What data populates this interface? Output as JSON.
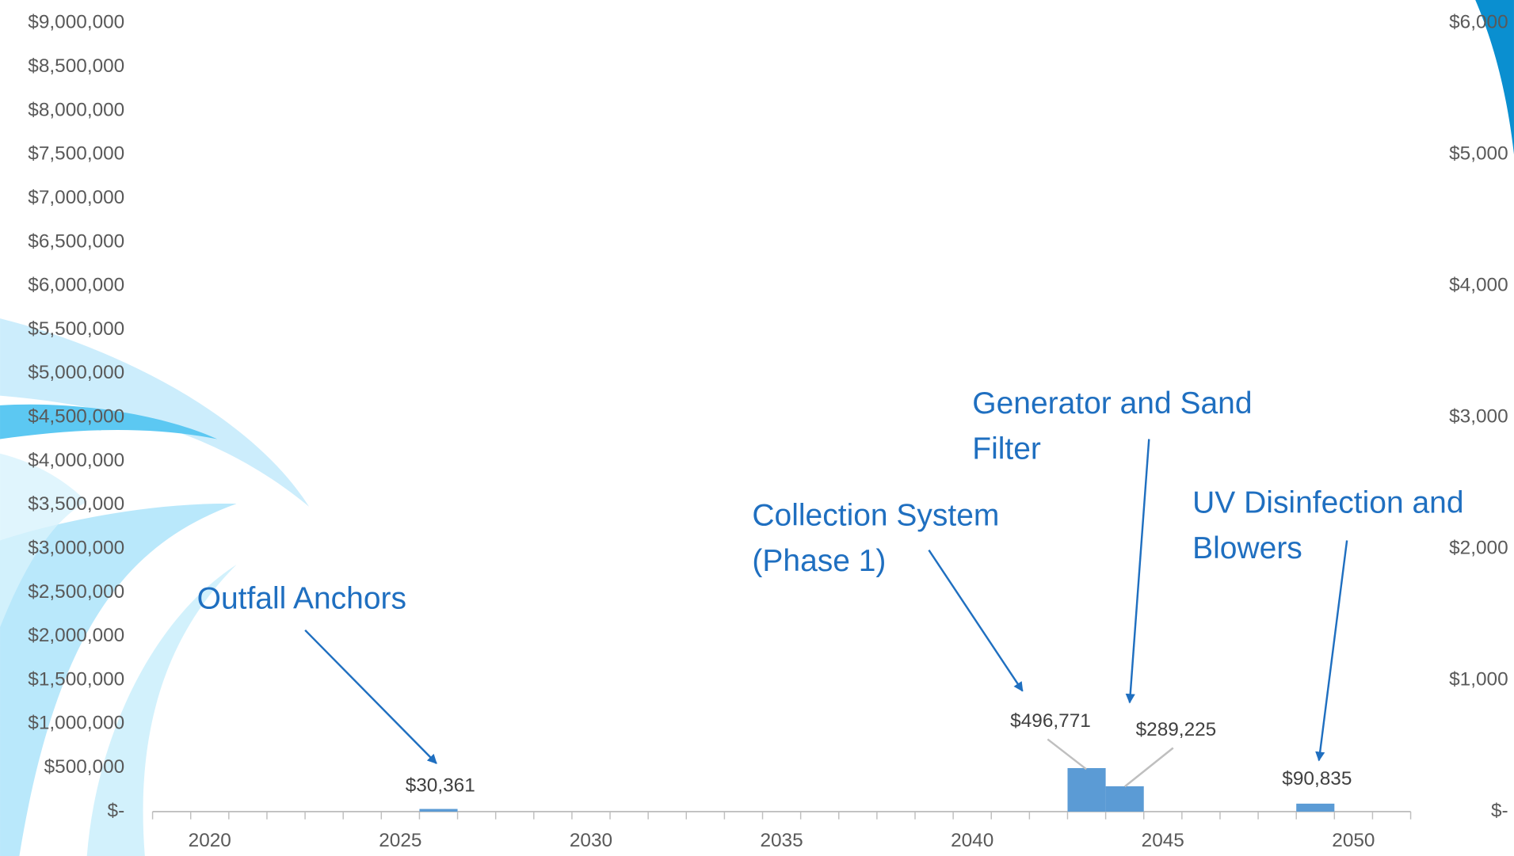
{
  "chart_data": {
    "type": "bar",
    "categories": [
      null,
      "2020",
      null,
      null,
      null,
      null,
      "2025",
      null,
      null,
      null,
      null,
      "2030",
      null,
      null,
      null,
      null,
      "2035",
      null,
      null,
      null,
      null,
      "2040",
      null,
      null,
      null,
      null,
      "2045",
      null,
      null,
      null,
      null,
      "2050",
      null
    ],
    "values": [
      null,
      null,
      null,
      null,
      null,
      null,
      null,
      30361,
      null,
      null,
      null,
      null,
      null,
      null,
      null,
      null,
      null,
      null,
      null,
      null,
      null,
      null,
      null,
      null,
      496771,
      289225,
      null,
      null,
      null,
      null,
      90835,
      null,
      null
    ],
    "value_labels": [
      null,
      null,
      null,
      null,
      null,
      null,
      null,
      "$30,361",
      null,
      null,
      null,
      null,
      null,
      null,
      null,
      null,
      null,
      null,
      null,
      null,
      null,
      null,
      null,
      null,
      "$496,771",
      "$289,225",
      null,
      null,
      null,
      null,
      "$90,835",
      null,
      null
    ],
    "color": "#5b9bd5",
    "ylim": [
      0,
      9000000
    ],
    "yticks": [
      {
        "value": 0,
        "label": "$-"
      },
      {
        "value": 500000,
        "label": "$500,000"
      },
      {
        "value": 1000000,
        "label": "$1,000,000"
      },
      {
        "value": 1500000,
        "label": "$1,500,000"
      },
      {
        "value": 2000000,
        "label": "$2,000,000"
      },
      {
        "value": 2500000,
        "label": "$2,500,000"
      },
      {
        "value": 3000000,
        "label": "$3,000,000"
      },
      {
        "value": 3500000,
        "label": "$3,500,000"
      },
      {
        "value": 4000000,
        "label": "$4,000,000"
      },
      {
        "value": 4500000,
        "label": "$4,500,000"
      },
      {
        "value": 5000000,
        "label": "$5,000,000"
      },
      {
        "value": 5500000,
        "label": "$5,500,000"
      },
      {
        "value": 6000000,
        "label": "$6,000,000"
      },
      {
        "value": 6500000,
        "label": "$6,500,000"
      },
      {
        "value": 7000000,
        "label": "$7,000,000"
      },
      {
        "value": 7500000,
        "label": "$7,500,000"
      },
      {
        "value": 8000000,
        "label": "$8,000,000"
      },
      {
        "value": 8500000,
        "label": "$8,500,000"
      },
      {
        "value": 9000000,
        "label": "$9,000,000"
      }
    ],
    "y2lim": [
      0,
      6000
    ],
    "y2ticks": [
      {
        "value": 0,
        "label": "$-"
      },
      {
        "value": 1000,
        "label": "$1,000"
      },
      {
        "value": 2000,
        "label": "$2,000"
      },
      {
        "value": 3000,
        "label": "$3,000"
      },
      {
        "value": 4000,
        "label": "$4,000"
      },
      {
        "value": 5000,
        "label": "$5,000"
      },
      {
        "value": 6000,
        "label": "$6,000"
      }
    ],
    "annotations": [
      {
        "text": [
          "Outfall Anchors"
        ]
      },
      {
        "text": [
          "Collection System",
          "(Phase 1)"
        ]
      },
      {
        "text": [
          "Generator and Sand",
          "Filter"
        ]
      },
      {
        "text": [
          "UV Disinfection and",
          "Blowers"
        ]
      }
    ]
  }
}
